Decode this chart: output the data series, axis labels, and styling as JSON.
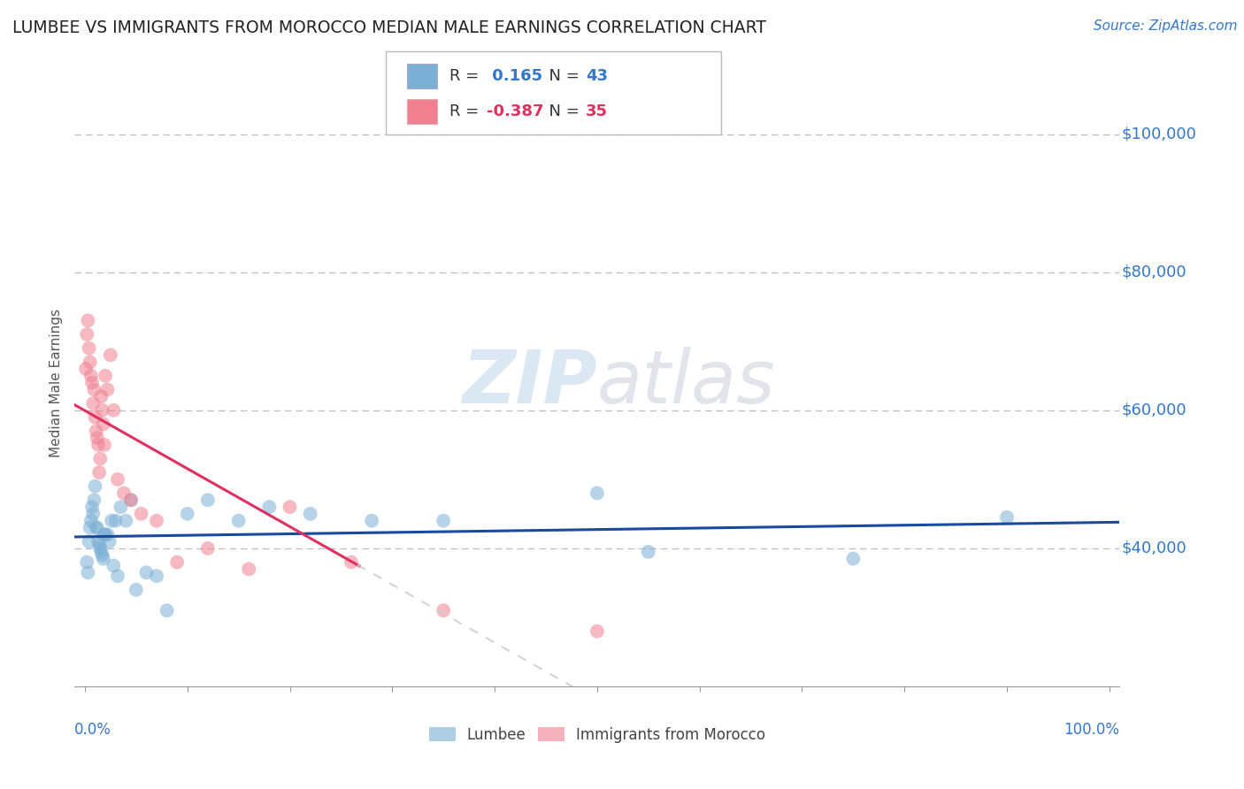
{
  "title": "LUMBEE VS IMMIGRANTS FROM MOROCCO MEDIAN MALE EARNINGS CORRELATION CHART",
  "source": "Source: ZipAtlas.com",
  "ylabel": "Median Male Earnings",
  "y_ticks": [
    40000,
    60000,
    80000,
    100000
  ],
  "y_tick_labels": [
    "$40,000",
    "$60,000",
    "$80,000",
    "$100,000"
  ],
  "y_min": 20000,
  "y_max": 108000,
  "x_min": -0.01,
  "x_max": 1.01,
  "lumbee_color": "#7bafd4",
  "morocco_color": "#f08090",
  "lumbee_line_color": "#1a4a9e",
  "morocco_line_color": "#e03060",
  "lumbee_R": 0.165,
  "lumbee_N": 43,
  "morocco_R": -0.387,
  "morocco_N": 35,
  "lumbee_x": [
    0.002,
    0.003,
    0.004,
    0.005,
    0.006,
    0.007,
    0.008,
    0.009,
    0.01,
    0.011,
    0.012,
    0.013,
    0.014,
    0.015,
    0.016,
    0.017,
    0.018,
    0.019,
    0.02,
    0.022,
    0.024,
    0.026,
    0.028,
    0.03,
    0.032,
    0.035,
    0.04,
    0.045,
    0.05,
    0.06,
    0.07,
    0.08,
    0.1,
    0.12,
    0.15,
    0.18,
    0.22,
    0.28,
    0.35,
    0.5,
    0.55,
    0.75,
    0.9
  ],
  "lumbee_y": [
    38000,
    36500,
    41000,
    43000,
    44000,
    46000,
    45000,
    47000,
    49000,
    43000,
    43000,
    41000,
    40500,
    40000,
    39500,
    39000,
    38500,
    42000,
    42000,
    42000,
    41000,
    44000,
    37500,
    44000,
    36000,
    46000,
    44000,
    47000,
    34000,
    36500,
    36000,
    31000,
    45000,
    47000,
    44000,
    46000,
    45000,
    44000,
    44000,
    48000,
    39500,
    38500,
    44500
  ],
  "morocco_x": [
    0.001,
    0.002,
    0.003,
    0.004,
    0.005,
    0.006,
    0.007,
    0.008,
    0.009,
    0.01,
    0.011,
    0.012,
    0.013,
    0.014,
    0.015,
    0.016,
    0.017,
    0.018,
    0.019,
    0.02,
    0.022,
    0.025,
    0.028,
    0.032,
    0.038,
    0.045,
    0.055,
    0.07,
    0.09,
    0.12,
    0.16,
    0.2,
    0.26,
    0.35,
    0.5
  ],
  "morocco_y": [
    66000,
    71000,
    73000,
    69000,
    67000,
    65000,
    64000,
    61000,
    63000,
    59000,
    57000,
    56000,
    55000,
    51000,
    53000,
    62000,
    60000,
    58000,
    55000,
    65000,
    63000,
    68000,
    60000,
    50000,
    48000,
    47000,
    45000,
    44000,
    38000,
    40000,
    37000,
    46000,
    38000,
    31000,
    28000
  ],
  "watermark_zip": "ZIP",
  "watermark_atlas": "atlas",
  "background_color": "#ffffff",
  "grid_color": "#bbbbcc",
  "title_color": "#222222",
  "blue_color": "#3377cc",
  "dark_text": "#333333"
}
